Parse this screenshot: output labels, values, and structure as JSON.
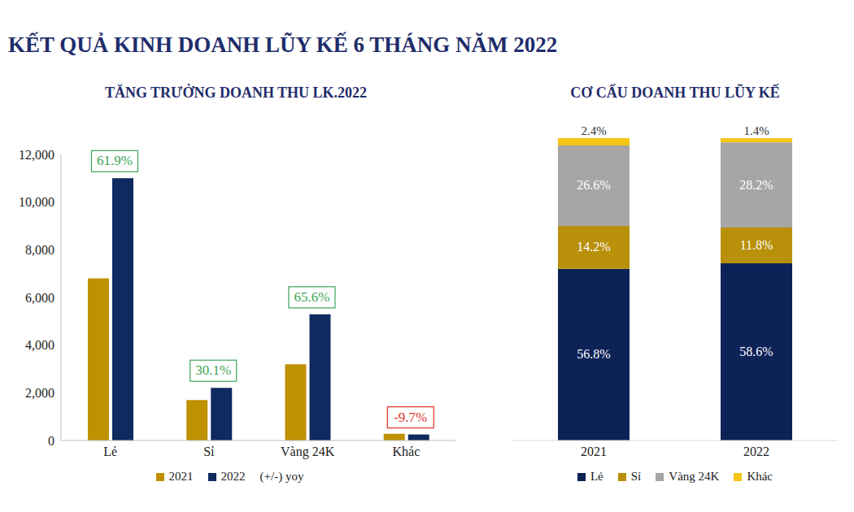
{
  "title": "KẾT QUẢ KINH DOANH LŨY KẾ 6 THÁNG NĂM 2022",
  "chart_data": [
    {
      "type": "bar",
      "title": "TĂNG TRƯỞNG DOANH THU LK.2022",
      "categories": [
        "Lẻ",
        "Sỉ",
        "Vàng 24K",
        "Khác"
      ],
      "series": [
        {
          "name": "2021",
          "color": "#bf9000",
          "values": [
            6800,
            1700,
            3200,
            280
          ]
        },
        {
          "name": "2022",
          "color": "#0f2a5f",
          "values": [
            11000,
            2210,
            5290,
            253
          ]
        }
      ],
      "ylim": [
        0,
        12000
      ],
      "yticks": [
        0,
        {
          "value": 2000,
          "label": "2,000"
        },
        {
          "value": 4000,
          "label": "4,000"
        },
        {
          "value": 6000,
          "label": "6,000"
        },
        {
          "value": 8000,
          "label": "8,000"
        },
        {
          "value": 10000,
          "label": "10,000"
        },
        {
          "value": 12000,
          "label": "12,000"
        }
      ],
      "grid": false,
      "legend": "bottom",
      "annotations": {
        "name": "(+/-) yoy",
        "values": [
          61.9,
          30.1,
          65.6,
          -9.7
        ],
        "labels": [
          "61.9%",
          "30.1%",
          "65.6%",
          "-9.7%"
        ]
      }
    },
    {
      "type": "bar",
      "title": "CƠ CẤU DOANH THU LŨY KẾ",
      "stacked": true,
      "categories": [
        "2021",
        "2022"
      ],
      "series": [
        {
          "name": "Lẻ",
          "color": "#0d2257",
          "values": [
            56.8,
            58.6
          ],
          "value_labels": [
            "56.8%",
            "58.6%"
          ]
        },
        {
          "name": "Sỉ",
          "color": "#b8900a",
          "values": [
            14.2,
            11.8
          ],
          "value_labels": [
            "14.2%",
            "11.8%"
          ]
        },
        {
          "name": "Vàng 24K",
          "color": "#a6a6a6",
          "values": [
            26.6,
            28.2
          ],
          "value_labels": [
            "26.6%",
            "28.2%"
          ]
        },
        {
          "name": "Khác",
          "color": "#f5c518",
          "values": [
            2.4,
            1.4
          ],
          "value_labels": [
            "2.4%",
            "1.4%"
          ]
        }
      ],
      "ylim": [
        0,
        100
      ],
      "tick_labels": "x",
      "data_labels": true,
      "legend": "bottom"
    }
  ]
}
